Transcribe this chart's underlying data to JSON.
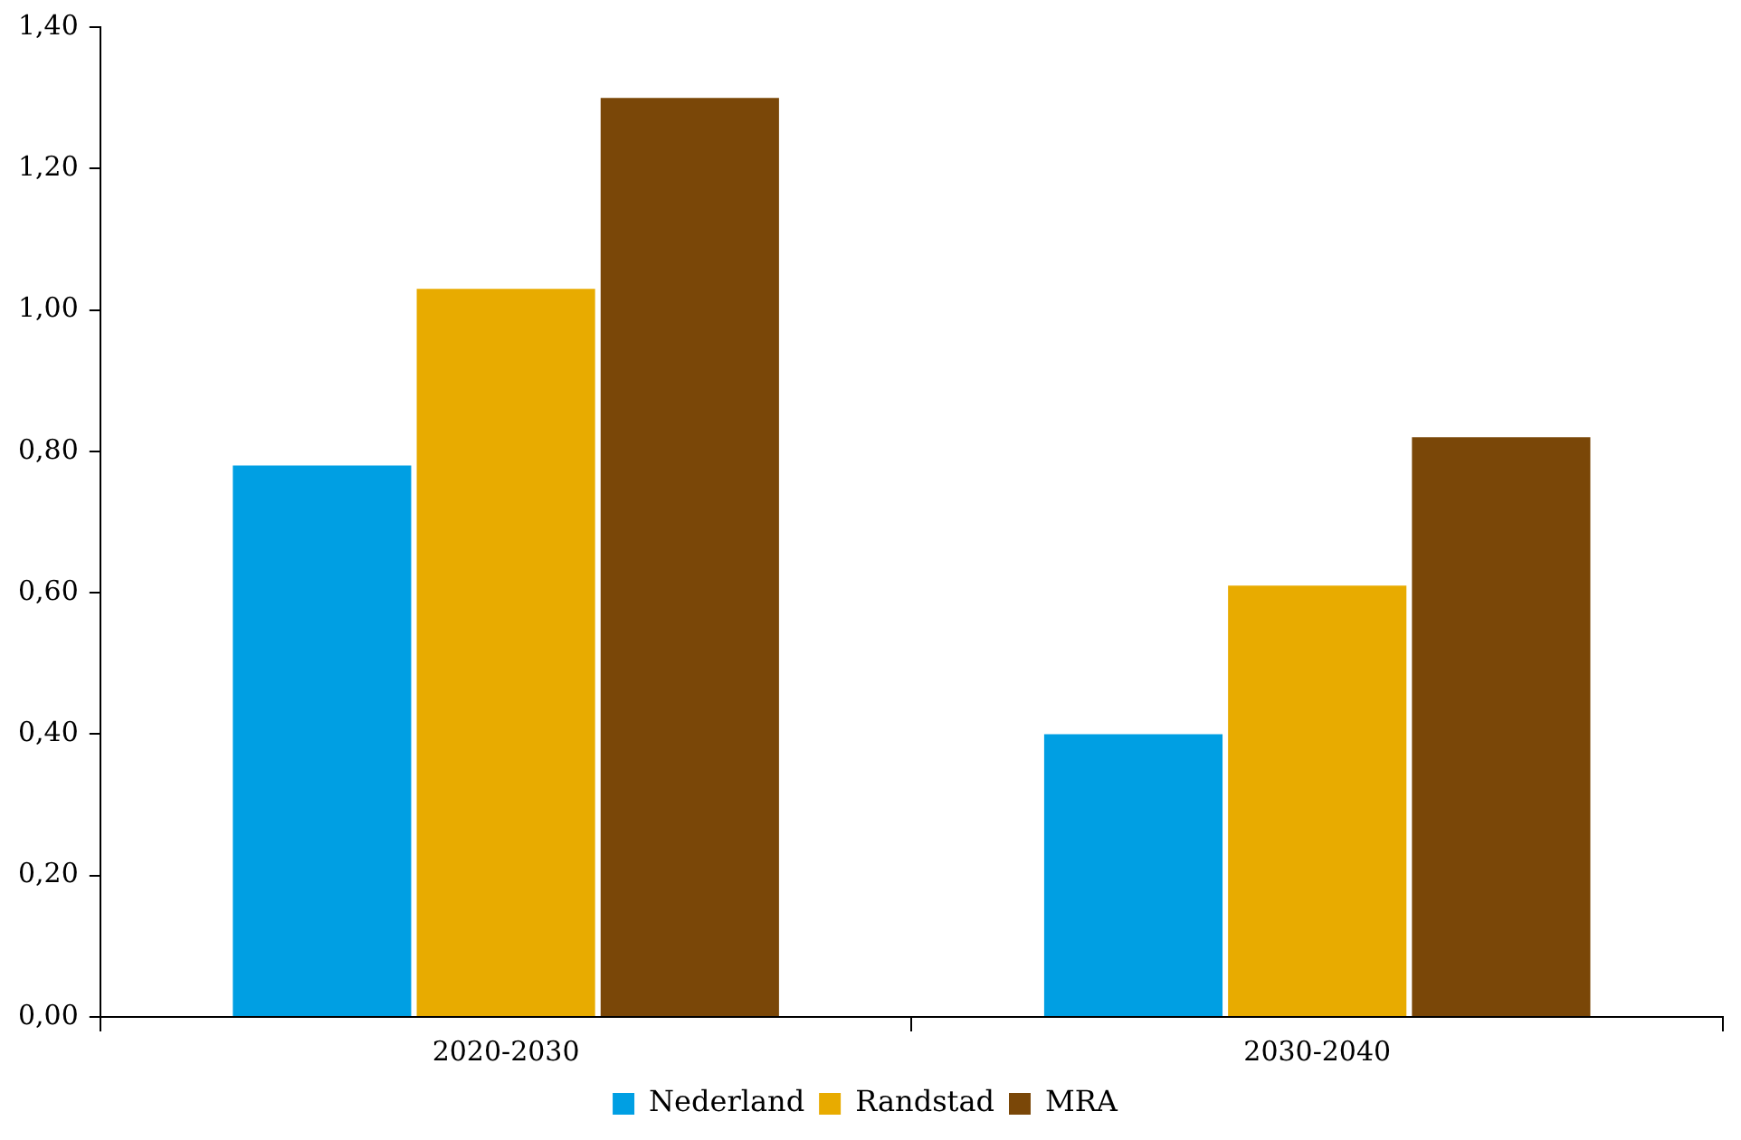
{
  "chart_data": {
    "type": "bar",
    "categories": [
      "2020-2030",
      "2030-2040"
    ],
    "series": [
      {
        "name": "Nederland",
        "color": "#009fe3",
        "values": [
          0.78,
          0.4
        ]
      },
      {
        "name": "Randstad",
        "color": "#e8ab00",
        "values": [
          1.03,
          0.61
        ]
      },
      {
        "name": "MRA",
        "color": "#7a4708",
        "values": [
          1.3,
          0.82
        ]
      }
    ],
    "ylim": [
      0,
      1.4
    ],
    "yticks": [
      {
        "value": 0,
        "label": "0,00"
      },
      {
        "value": 0.2,
        "label": "0,20"
      },
      {
        "value": 0.4,
        "label": "0,40"
      },
      {
        "value": 0.6,
        "label": "0,60"
      },
      {
        "value": 0.8,
        "label": "0,80"
      },
      {
        "value": 1,
        "label": "1,00"
      },
      {
        "value": 1.2,
        "label": "1,20"
      },
      {
        "value": 1.4,
        "label": "1,40"
      }
    ],
    "grid": false,
    "legend": "bottom"
  }
}
